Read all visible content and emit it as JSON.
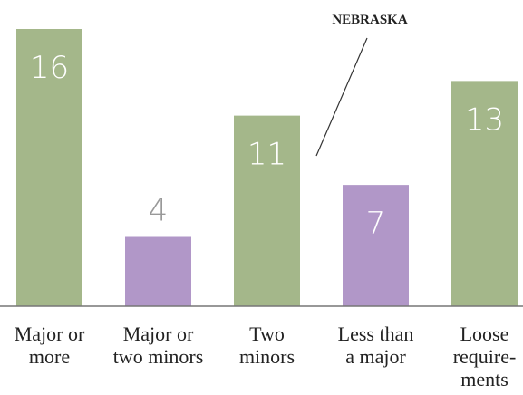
{
  "chart_data": {
    "type": "bar",
    "categories": [
      [
        "Major or",
        "more"
      ],
      [
        "Major or",
        "two minors"
      ],
      [
        "Two",
        "minors"
      ],
      [
        "Less than",
        "a major"
      ],
      [
        "Loose",
        "require-",
        "ments"
      ]
    ],
    "values": [
      16,
      4,
      11,
      7,
      13
    ],
    "colors": [
      "#a4b78a",
      "#b197c8",
      "#a4b78a",
      "#b197c8",
      "#a4b78a"
    ],
    "ylim": [
      0,
      16
    ],
    "annotation": "NEBRASKA"
  }
}
